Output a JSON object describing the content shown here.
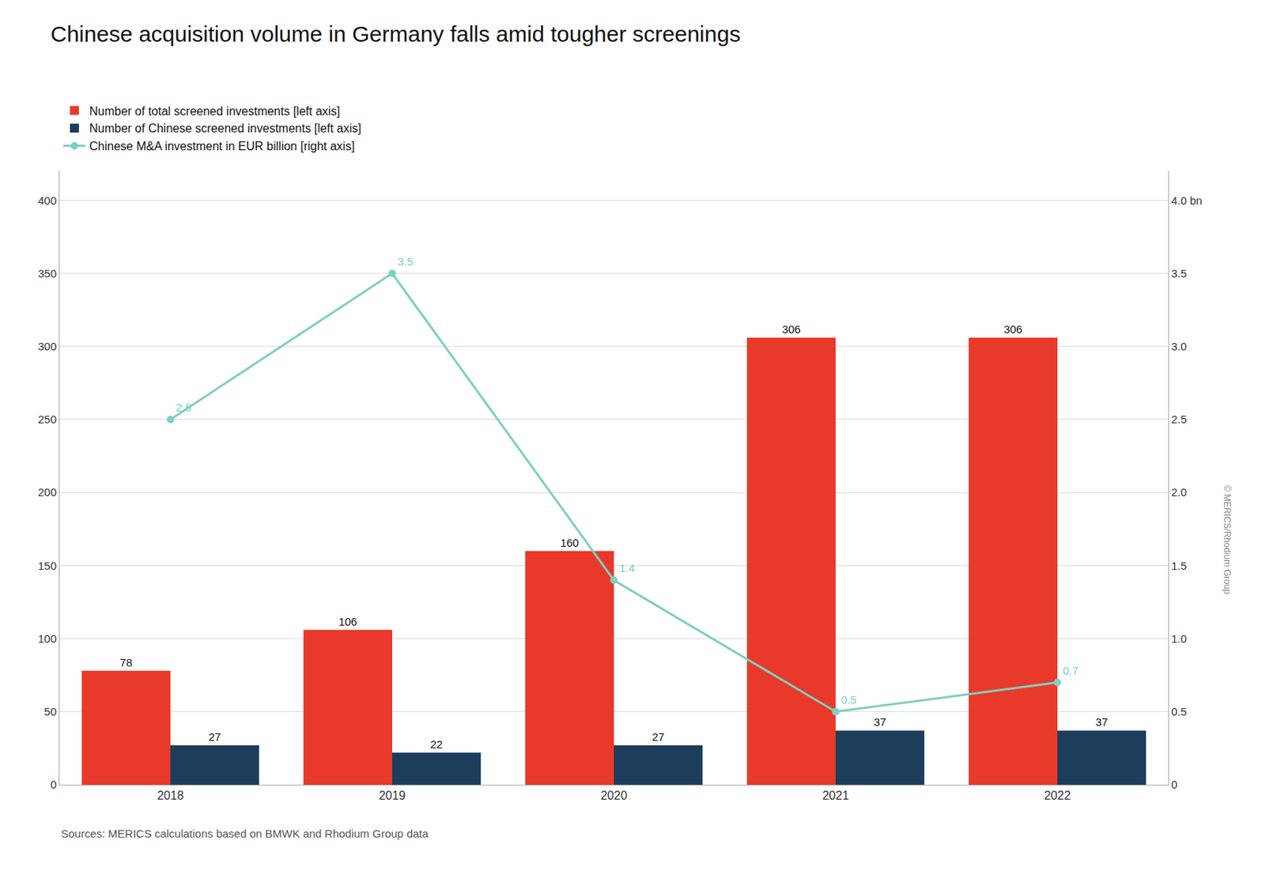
{
  "chart_data": {
    "type": "bar",
    "title": "Chinese acquisition volume in Germany falls amid tougher screenings",
    "categories": [
      "2018",
      "2019",
      "2020",
      "2021",
      "2022"
    ],
    "series": [
      {
        "name": "Number of total screened investments [left axis]",
        "color": "#e8392a",
        "values": [
          78,
          106,
          160,
          306,
          306
        ]
      },
      {
        "name": "Number of Chinese screened investments [left axis]",
        "color": "#1d3d5c",
        "values": [
          27,
          22,
          27,
          37,
          37
        ]
      },
      {
        "name": "Chinese M&A investment in EUR billion [right axis]",
        "type": "line",
        "axis": "y2",
        "color": "#7ecfc0",
        "marker": "circle",
        "line_style": "solid",
        "values": [
          2.5,
          3.5,
          1.4,
          0.5,
          0.7
        ]
      }
    ],
    "ylim": [
      0,
      420
    ],
    "yticks": [
      0,
      50,
      100,
      150,
      200,
      250,
      300,
      350,
      400
    ],
    "y2lim": [
      0,
      4.2
    ],
    "y2ticks": [
      0,
      0.5,
      {
        "value": 1.0,
        "label": "1.0"
      },
      1.5,
      {
        "value": 2.0,
        "label": "2.0"
      },
      2.5,
      {
        "value": 3.0,
        "label": "3.0"
      },
      3.5,
      {
        "value": 4.0,
        "label": "4.0 bn"
      }
    ],
    "grid": true,
    "legend": "upper left",
    "data_labels": true,
    "annotations": [
      "Sources: MERICS calculations based on BMWK and Rhodium Group data",
      "© MERICS/Rhodium Group"
    ]
  }
}
